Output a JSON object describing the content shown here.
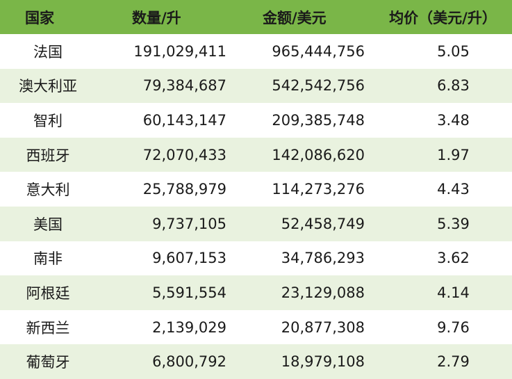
{
  "table": {
    "headers": {
      "country": "国家",
      "quantity": "数量/升",
      "amount": "金额/美元",
      "price": "均价（美元/升）"
    },
    "rows": [
      {
        "country": "法国",
        "quantity": "191,029,411",
        "amount": "965,444,756",
        "price": "5.05"
      },
      {
        "country": "澳大利亚",
        "quantity": "79,384,687",
        "amount": "542,542,756",
        "price": "6.83"
      },
      {
        "country": "智利",
        "quantity": "60,143,147",
        "amount": "209,385,748",
        "price": "3.48"
      },
      {
        "country": "西班牙",
        "quantity": "72,070,433",
        "amount": "142,086,620",
        "price": "1.97"
      },
      {
        "country": "意大利",
        "quantity": "25,788,979",
        "amount": "114,273,276",
        "price": "4.43"
      },
      {
        "country": "美国",
        "quantity": "9,737,105",
        "amount": "52,458,749",
        "price": "5.39"
      },
      {
        "country": "南非",
        "quantity": "9,607,153",
        "amount": "34,786,293",
        "price": "3.62"
      },
      {
        "country": "阿根廷",
        "quantity": "5,591,554",
        "amount": "23,129,088",
        "price": "4.14"
      },
      {
        "country": "新西兰",
        "quantity": "2,139,029",
        "amount": "20,877,308",
        "price": "9.76"
      },
      {
        "country": "葡萄牙",
        "quantity": "6,800,792",
        "amount": "18,979,108",
        "price": "2.79"
      }
    ]
  },
  "colors": {
    "header_bg": "#7ab648",
    "alt_row_bg": "#e9f2df"
  }
}
